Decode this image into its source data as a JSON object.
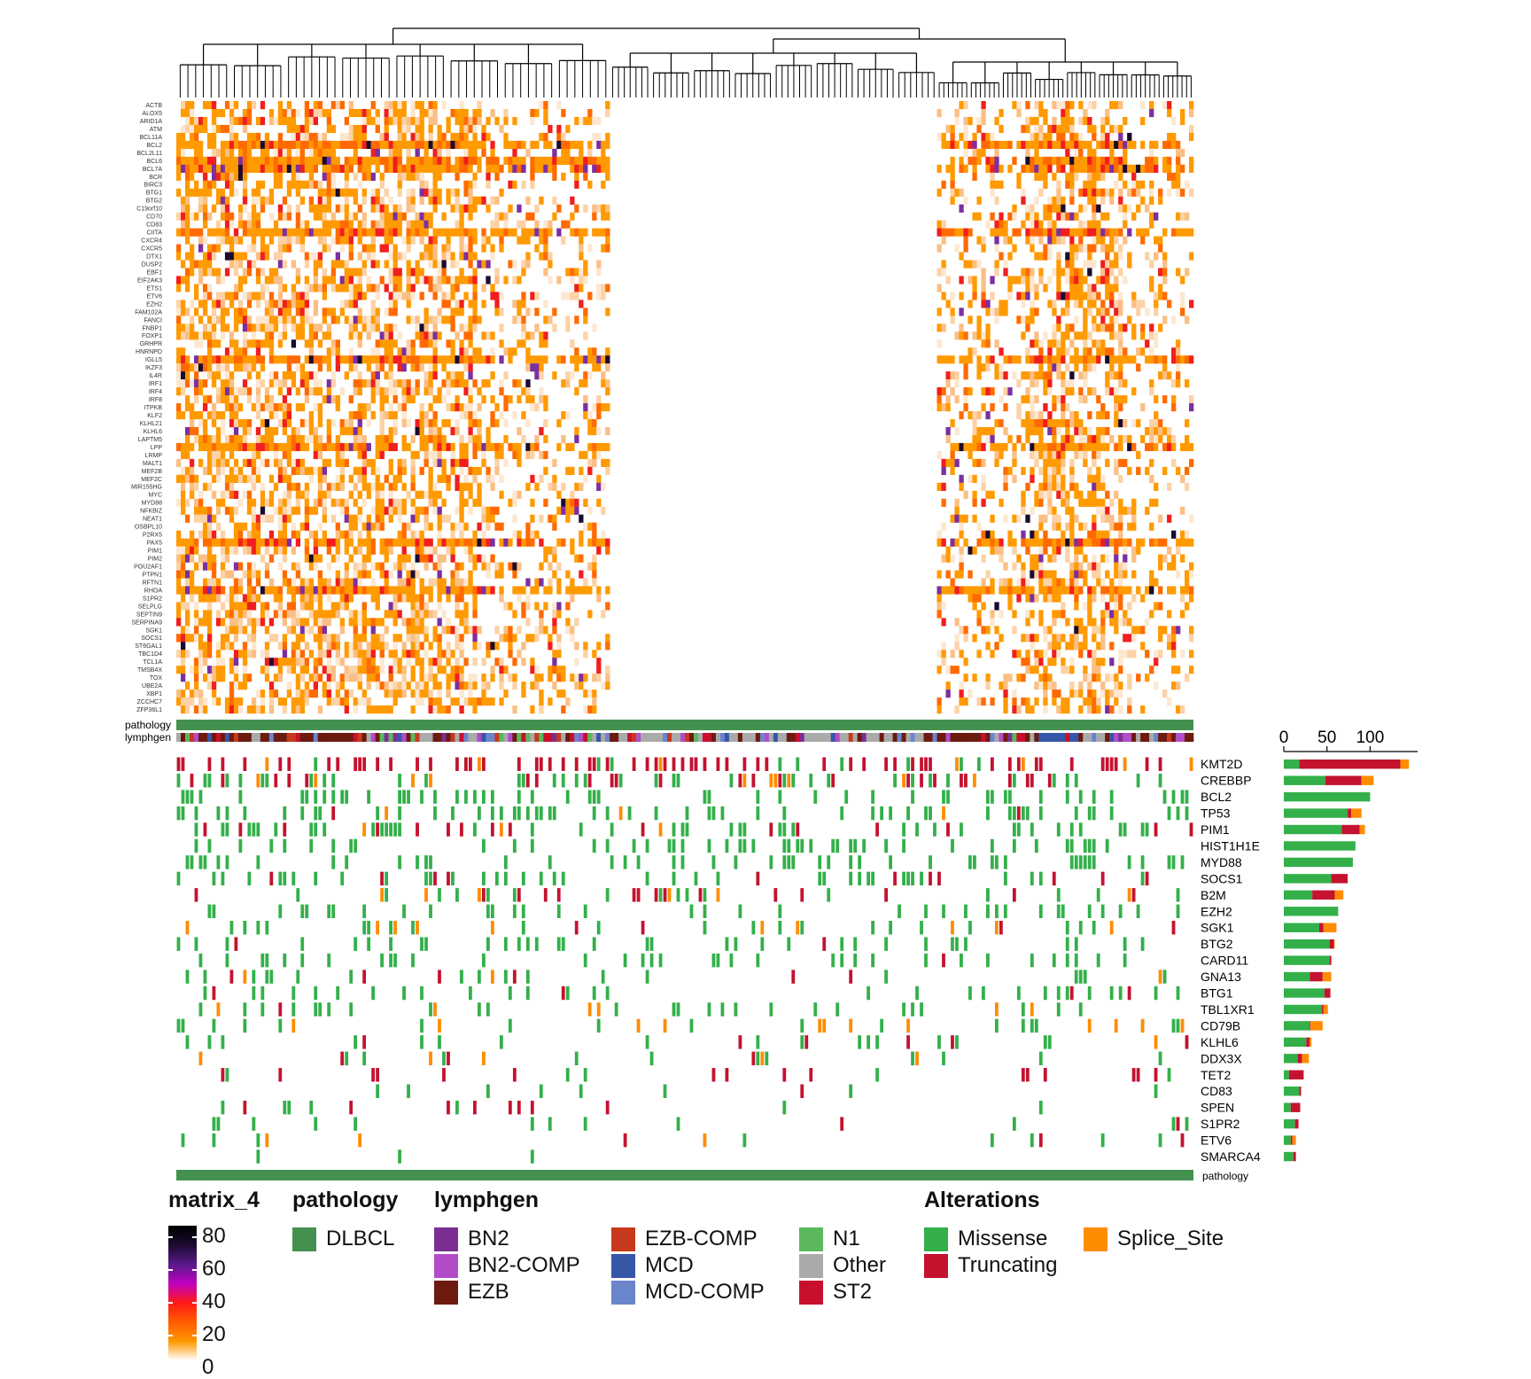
{
  "colors": {
    "pathology_DLBCL": "#44914f",
    "Missense": "#33b04a",
    "Truncating": "#c4122f",
    "Splice_Site": "#ff8c00",
    "BN2": "#7b2f92",
    "BN2-COMP": "#b24cc8",
    "EZB": "#6d1a0f",
    "EZB-COMP": "#c53a1d",
    "MCD": "#3656a8",
    "MCD-COMP": "#6a85cc",
    "N1": "#5cb85c",
    "Other": "#aaaaaa",
    "ST2": "#c8102e",
    "heat_scale": [
      "#ffffff",
      "#ff9900",
      "#ff5a00",
      "#ff1a1a",
      "#c000c0",
      "#5a1a8c",
      "#1a0a2e",
      "#000000"
    ]
  },
  "chart_data": [
    {
      "type": "heatmap",
      "name": "matrix_4",
      "row_labels": [
        "ACTB",
        "ALOX5",
        "ARID1A",
        "ATM",
        "BCL11A",
        "BCL2",
        "BCL2L11",
        "BCL6",
        "BCL7A",
        "BCR",
        "BIRC3",
        "BTG1",
        "BTG2",
        "C19orf10",
        "CD70",
        "CD83",
        "CIITA",
        "CXCR4",
        "CXCR5",
        "DTX1",
        "DUSP2",
        "EBF1",
        "EIF2AK3",
        "ETS1",
        "ETV6",
        "EZH2",
        "FAM102A",
        "FANCI",
        "FNBP1",
        "FOXP1",
        "GRHPR",
        "HNRNPD",
        "IGLL5",
        "IKZF3",
        "IL4R",
        "IRF1",
        "IRF4",
        "IRF8",
        "ITPKB",
        "KLF2",
        "KLHL21",
        "KLHL6",
        "LAPTM5",
        "LPP",
        "LRMP",
        "MALT1",
        "MEF2B",
        "MEF2C",
        "MIR155HG",
        "MYC",
        "MYD88",
        "NFKBIZ",
        "NEAT1",
        "OSBPL10",
        "P2RX5",
        "PAX5",
        "PIM1",
        "PIM2",
        "POU2AF1",
        "PTPN1",
        "RFTN1",
        "RHOA",
        "S1PR2",
        "SELPLG",
        "SEPTIN9",
        "SERPINA9",
        "SGK1",
        "SOCS1",
        "ST6GAL1",
        "TBC1D4",
        "TCL1A",
        "TMSB4X",
        "TOX",
        "UBE2A",
        "XBP1",
        "ZCCHC7",
        "ZFP36L1"
      ],
      "legend": {
        "title": "matrix_4",
        "ticks": [
          "80",
          "60",
          "40",
          "20",
          "0"
        ],
        "range": [
          0,
          80
        ]
      },
      "columns": 1100,
      "dendrogram": true,
      "grid": false
    },
    {
      "type": "table",
      "name": "oncoprint",
      "annotation_labels": {
        "pathology": "pathology",
        "lymphgen": "lymphgen",
        "bottom_pathology": "pathology"
      },
      "genes": [
        "KMT2D",
        "CREBBP",
        "BCL2",
        "TP53",
        "PIM1",
        "HIST1H1E",
        "MYD88",
        "SOCS1",
        "B2M",
        "EZH2",
        "SGK1",
        "BTG2",
        "CARD11",
        "GNA13",
        "BTG1",
        "TBL1XR1",
        "CD79B",
        "KLHL6",
        "DDX3X",
        "TET2",
        "CD83",
        "SPEN",
        "S1PR2",
        "ETV6",
        "SMARCA4"
      ],
      "alteration_types": [
        "Missense",
        "Truncating",
        "Splice_Site"
      ]
    },
    {
      "type": "bar",
      "orientation": "horizontal",
      "stacked": true,
      "categories": [
        "KMT2D",
        "CREBBP",
        "BCL2",
        "TP53",
        "PIM1",
        "HIST1H1E",
        "MYD88",
        "SOCS1",
        "B2M",
        "EZH2",
        "SGK1",
        "BTG2",
        "CARD11",
        "GNA13",
        "BTG1",
        "TBL1XR1",
        "CD79B",
        "KLHL6",
        "DDX3X",
        "TET2",
        "CD83",
        "SPEN",
        "S1PR2",
        "ETV6",
        "SMARCA4"
      ],
      "series": [
        {
          "name": "Missense",
          "values": [
            18,
            48,
            100,
            74,
            67,
            83,
            80,
            55,
            33,
            63,
            41,
            53,
            53,
            30,
            47,
            44,
            30,
            26,
            16,
            6,
            18,
            8,
            13,
            8,
            11
          ]
        },
        {
          "name": "Truncating",
          "values": [
            117,
            42,
            0,
            4,
            21,
            0,
            0,
            19,
            26,
            0,
            5,
            5,
            2,
            15,
            7,
            2,
            1,
            4,
            5,
            17,
            2,
            11,
            4,
            2,
            3
          ]
        },
        {
          "name": "Splice_Site",
          "values": [
            10,
            14,
            0,
            12,
            6,
            0,
            0,
            0,
            10,
            0,
            15,
            1,
            0,
            10,
            0,
            5,
            14,
            2,
            8,
            0,
            0,
            0,
            0,
            4,
            0
          ]
        }
      ],
      "xticks": [
        "0",
        "50",
        "100"
      ],
      "xlim": [
        0,
        155
      ]
    }
  ],
  "legends": {
    "matrix_4": {
      "title": "matrix_4",
      "ticks": [
        "80",
        "60",
        "40",
        "20",
        "0"
      ]
    },
    "pathology": {
      "title": "pathology",
      "items": [
        "DLBCL"
      ]
    },
    "lymphgen": {
      "title": "lymphgen",
      "items": [
        "BN2",
        "BN2-COMP",
        "EZB",
        "EZB-COMP",
        "MCD",
        "MCD-COMP",
        "N1",
        "Other",
        "ST2"
      ]
    },
    "alterations": {
      "title": "Alterations",
      "items": [
        "Missense",
        "Truncating",
        "Splice_Site"
      ]
    }
  }
}
